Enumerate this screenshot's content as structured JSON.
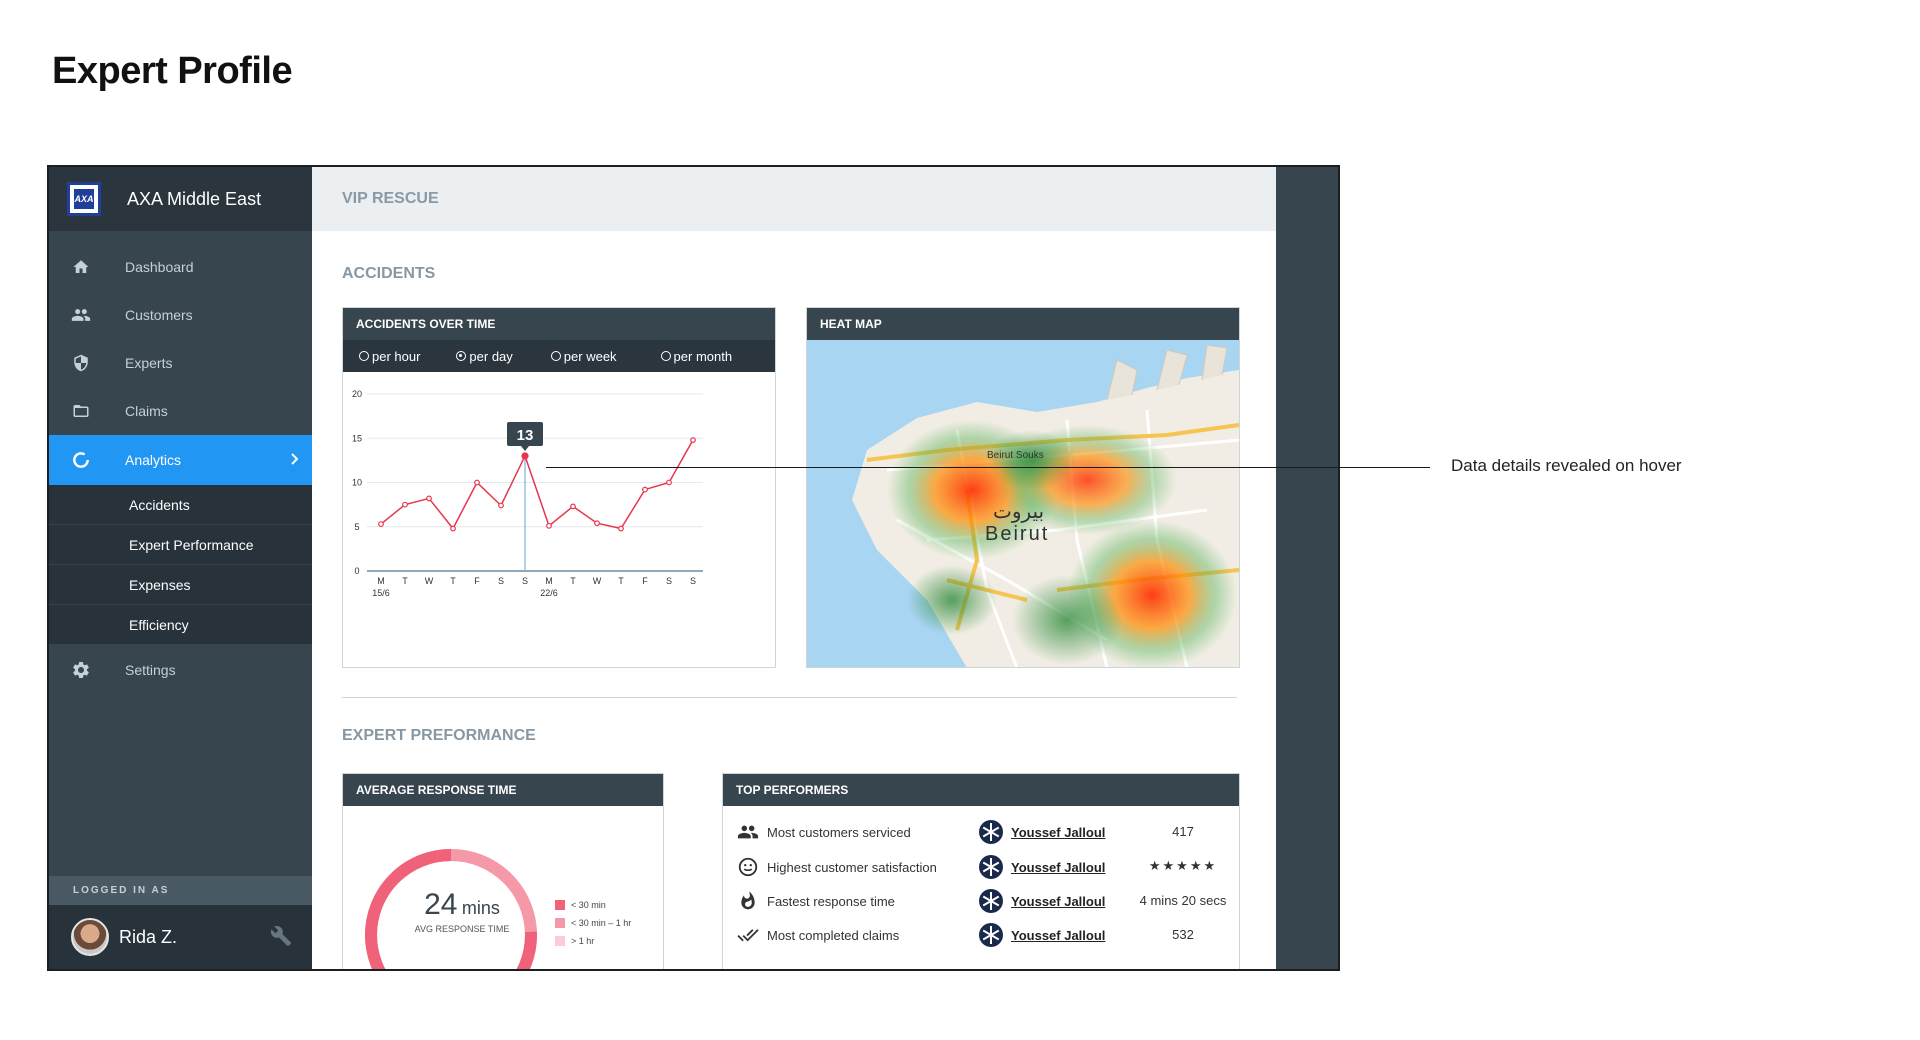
{
  "page_title": "Expert Profile",
  "sidebar": {
    "brand_name": "AXA Middle East",
    "logo_text": "AXA",
    "items": [
      {
        "label": "Dashboard",
        "icon": "home-icon"
      },
      {
        "label": "Customers",
        "icon": "people-icon"
      },
      {
        "label": "Experts",
        "icon": "shield-icon"
      },
      {
        "label": "Claims",
        "icon": "folder-icon"
      },
      {
        "label": "Analytics",
        "icon": "donut-icon",
        "active": true
      }
    ],
    "subitems": [
      "Accidents",
      "Expert Performance",
      "Expenses",
      "Efficiency"
    ],
    "settings_label": "Settings",
    "logged_in_label": "LOGGED IN AS",
    "user_name": "Rida Z."
  },
  "main": {
    "topbar_title": "VIP RESCUE",
    "accidents_title": "ACCIDENTS",
    "accidents_card_title": "ACCIDENTS OVER TIME",
    "radio_options": [
      "per hour",
      "per day",
      "per week",
      "per month"
    ],
    "radio_selected": "per day",
    "heatmap_title": "HEAT MAP",
    "heatmap_labels": {
      "city_en": "Beirut",
      "city_ar": "بيروت",
      "souks": "Beirut Souks"
    },
    "expert_title": "EXPERT PREFORMANCE",
    "avg_card_title": "AVERAGE RESPONSE TIME",
    "avg_value": "24",
    "avg_unit": "mins",
    "avg_caption": "AVG RESPONSE TIME",
    "legend": [
      "< 30 min",
      "< 30 min – 1 hr",
      "> 1 hr"
    ],
    "legend_colors": [
      "#f0617a",
      "#f598a8",
      "#fbcdd5"
    ],
    "top_card_title": "TOP PERFORMERS",
    "performers": [
      {
        "metric": "Most customers serviced",
        "icon": "people-icon",
        "name": "Youssef Jalloul",
        "value": "417"
      },
      {
        "metric": "Highest customer satisfaction",
        "icon": "smiley-icon",
        "name": "Youssef Jalloul",
        "value": "★★★★★"
      },
      {
        "metric": "Fastest response time",
        "icon": "flame-icon",
        "name": "Youssef Jalloul",
        "value": "4 mins 20 secs"
      },
      {
        "metric": "Most completed claims",
        "icon": "double-check-icon",
        "name": "Youssef Jalloul",
        "value": "532"
      }
    ]
  },
  "annotation": "Data details revealed on hover",
  "colors": {
    "accent": "#2196f3",
    "sidebar": "#37454f",
    "line": "#e8354e"
  },
  "chart_data": {
    "type": "line",
    "title": "ACCIDENTS OVER TIME",
    "categories": [
      "M",
      "T",
      "W",
      "T",
      "F",
      "S",
      "S",
      "M",
      "T",
      "W",
      "T",
      "F",
      "S",
      "S"
    ],
    "date_labels": [
      "15/6",
      "",
      "",
      "",
      "",
      "",
      "",
      "22/6",
      "",
      "",
      "",
      "",
      "",
      ""
    ],
    "values": [
      5.3,
      7.5,
      8.2,
      4.8,
      10,
      7.4,
      13,
      5.1,
      7.3,
      5.4,
      4.8,
      9.2,
      10,
      14.8
    ],
    "ylim": [
      0,
      20
    ],
    "yticks": [
      0,
      5,
      10,
      15,
      20
    ],
    "tooltip": {
      "index": 6,
      "value": "13"
    },
    "grid": true
  }
}
